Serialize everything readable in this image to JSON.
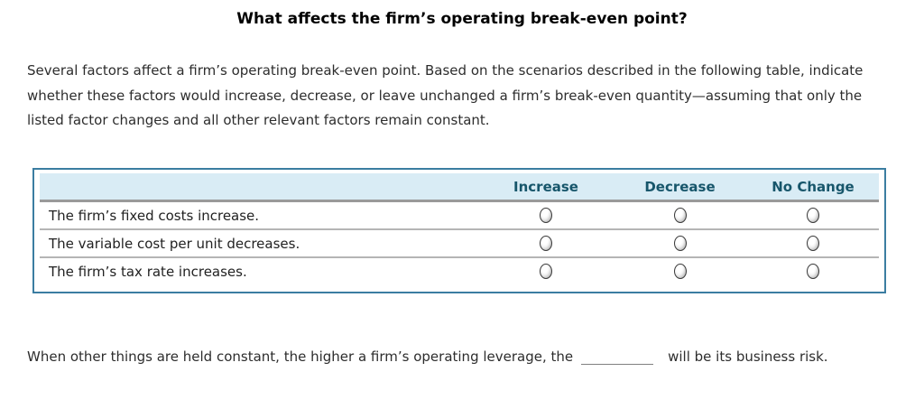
{
  "title": "What affects the firm’s operating break-even point?",
  "intro": "Several factors affect a firm’s operating break-even point. Based on the scenarios described in the following table, indicate whether these factors would increase, decrease, or leave unchanged a firm’s break-even quantity—assuming that only the listed factor changes and all other relevant factors remain constant.",
  "table": {
    "columns": [
      "Increase",
      "Decrease",
      "No Change"
    ],
    "rows": [
      {
        "label": "The firm’s fixed costs increase."
      },
      {
        "label": "The variable cost per unit decreases."
      },
      {
        "label": "The firm’s tax rate increases."
      }
    ],
    "radio_state": "all-unselected"
  },
  "footer": {
    "before_blank": "When other things are held constant, the higher a firm’s operating leverage, the",
    "after_blank": "will be its business risk."
  },
  "colors": {
    "header_bg": "#d9ecf5",
    "header_text": "#17566b",
    "table_border": "#3b7da1",
    "separator_thick": "#9a9a9a",
    "separator_thin": "#b5b5b5",
    "body_text": "#2d2d2d"
  }
}
